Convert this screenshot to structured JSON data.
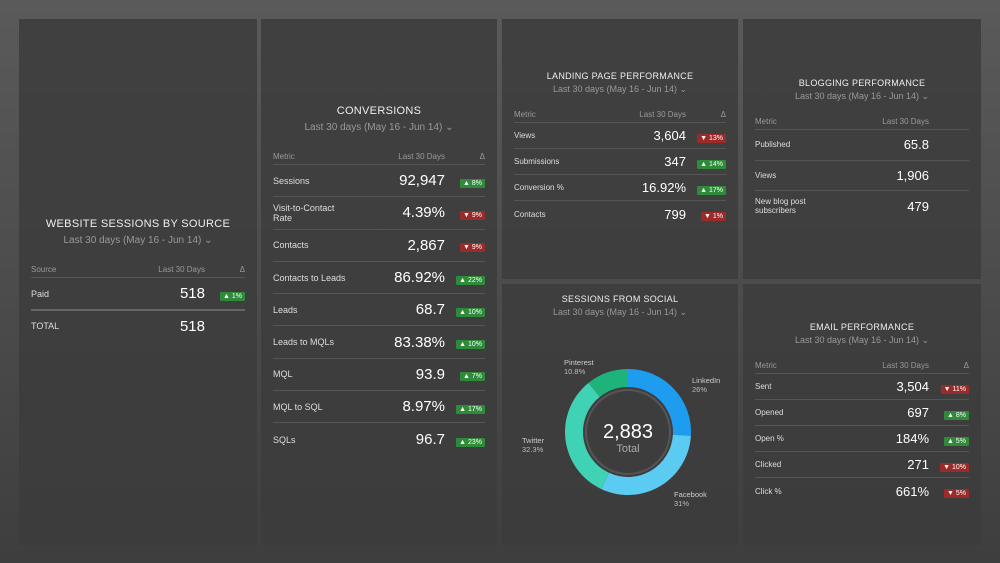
{
  "date_range": "Last 30 days (May 16 - Jun 14)",
  "website_sessions": {
    "title": "WEBSITE SESSIONS BY SOURCE",
    "headers": [
      "Source",
      "Last 30 Days",
      "Δ"
    ],
    "rows": [
      {
        "label": "Paid",
        "value": "518",
        "delta": "▲ 1%",
        "dir": "up"
      }
    ],
    "total_label": "TOTAL",
    "total_value": "518"
  },
  "conversions": {
    "title": "CONVERSIONS",
    "headers": [
      "Metric",
      "Last 30 Days",
      "Δ"
    ],
    "rows": [
      {
        "label": "Sessions",
        "value": "92,947",
        "delta": "▲ 8%",
        "dir": "up"
      },
      {
        "label": "Visit-to-Contact Rate",
        "value": "4.39%",
        "delta": "▼ 9%",
        "dir": "down"
      },
      {
        "label": "Contacts",
        "value": "2,867",
        "delta": "▼ 9%",
        "dir": "down"
      },
      {
        "label": "Contacts to Leads",
        "value": "86.92%",
        "delta": "▲ 22%",
        "dir": "up"
      },
      {
        "label": "Leads",
        "value": "68.7",
        "delta": "▲ 10%",
        "dir": "up"
      },
      {
        "label": "Leads to MQLs",
        "value": "83.38%",
        "delta": "▲ 10%",
        "dir": "up"
      },
      {
        "label": "MQL",
        "value": "93.9",
        "delta": "▲ 7%",
        "dir": "up"
      },
      {
        "label": "MQL to SQL",
        "value": "8.97%",
        "delta": "▲ 17%",
        "dir": "up"
      },
      {
        "label": "SQLs",
        "value": "96.7",
        "delta": "▲ 23%",
        "dir": "up"
      }
    ]
  },
  "landing": {
    "title": "LANDING PAGE PERFORMANCE",
    "headers": [
      "Metric",
      "Last 30 Days",
      "Δ"
    ],
    "rows": [
      {
        "label": "Views",
        "value": "3,604",
        "delta": "▼ 13%",
        "dir": "down"
      },
      {
        "label": "Submissions",
        "value": "347",
        "delta": "▲ 14%",
        "dir": "up"
      },
      {
        "label": "Conversion %",
        "value": "16.92%",
        "delta": "▲ 17%",
        "dir": "up"
      },
      {
        "label": "Contacts",
        "value": "799",
        "delta": "▼ 1%",
        "dir": "down"
      }
    ]
  },
  "blogging": {
    "title": "BLOGGING PERFORMANCE",
    "headers": [
      "Metric",
      "Last 30 Days"
    ],
    "rows": [
      {
        "label": "Published",
        "value": "65.8"
      },
      {
        "label": "Views",
        "value": "1,906"
      },
      {
        "label": "New blog post subscribers",
        "value": "479"
      }
    ]
  },
  "social": {
    "title": "SESSIONS FROM SOCIAL",
    "total": "2,883",
    "total_label": "Total",
    "segments": [
      {
        "name": "LinkedIn",
        "pct": "26%",
        "value": 26,
        "color": "#1e9cf0"
      },
      {
        "name": "Facebook",
        "pct": "31%",
        "value": 31,
        "color": "#5ccbf2"
      },
      {
        "name": "Twitter",
        "pct": "32.3%",
        "value": 32.3,
        "color": "#3fd2b4"
      },
      {
        "name": "Pinterest",
        "pct": "10.8%",
        "value": 10.8,
        "color": "#1db37a"
      }
    ]
  },
  "email": {
    "title": "EMAIL PERFORMANCE",
    "headers": [
      "Metric",
      "Last 30 Days",
      "Δ"
    ],
    "rows": [
      {
        "label": "Sent",
        "value": "3,504",
        "delta": "▼ 11%",
        "dir": "down"
      },
      {
        "label": "Opened",
        "value": "697",
        "delta": "▲ 8%",
        "dir": "up"
      },
      {
        "label": "Open %",
        "value": "184%",
        "delta": "▲ 5%",
        "dir": "up"
      },
      {
        "label": "Clicked",
        "value": "271",
        "delta": "▼ 10%",
        "dir": "down"
      },
      {
        "label": "Click %",
        "value": "661%",
        "delta": "▼ 5%",
        "dir": "down"
      }
    ]
  }
}
